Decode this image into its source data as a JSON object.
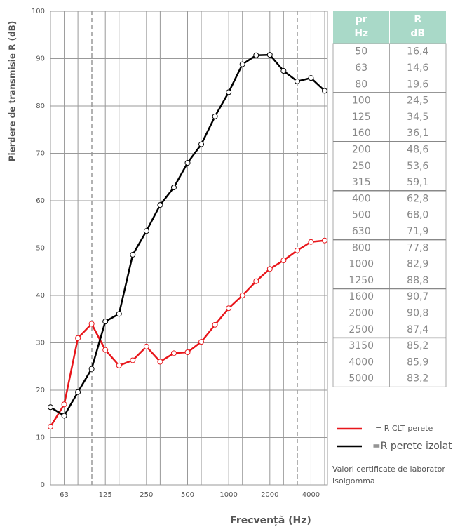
{
  "chart_data": {
    "type": "line",
    "y_label": "Pierdere de transmisie R (dB)",
    "x_label": "Frecvență (Hz)",
    "categories": [
      null,
      "63",
      null,
      null,
      "125",
      null,
      null,
      "250",
      null,
      null,
      "500",
      null,
      null,
      "1000",
      null,
      null,
      "2000",
      null,
      null,
      "4000",
      null
    ],
    "series": [
      {
        "name": "= R CLT perete",
        "color": "#e8161b",
        "values": [
          12.3,
          17,
          31,
          34,
          28.5,
          25.2,
          26.3,
          29.2,
          26,
          27.8,
          28,
          30.2,
          33.8,
          37.3,
          40,
          43,
          45.6,
          47.4,
          49.5,
          51.3,
          51.6
        ]
      },
      {
        "name": "=R perete izolat",
        "color": "#000000",
        "values": [
          16.4,
          14.6,
          19.6,
          24.5,
          34.5,
          36.1,
          48.6,
          53.6,
          59.1,
          62.8,
          68.0,
          71.9,
          77.8,
          82.9,
          88.8,
          90.7,
          90.8,
          87.4,
          85.2,
          85.9,
          83.2
        ]
      }
    ],
    "ylim": [
      0,
      100
    ],
    "yticks": [
      0,
      10,
      20,
      30,
      40,
      50,
      60,
      70,
      80,
      90,
      100
    ],
    "grid": true
  },
  "table": {
    "header": [
      [
        "pr",
        "Hz"
      ],
      [
        "R",
        "dB"
      ]
    ],
    "rows": [
      [
        "50",
        "16,4"
      ],
      [
        "63",
        "14,6"
      ],
      [
        "80",
        "19,6"
      ],
      [
        "100",
        "24,5"
      ],
      [
        "125",
        "34,5"
      ],
      [
        "160",
        "36,1"
      ],
      [
        "200",
        "48,6"
      ],
      [
        "250",
        "53,6"
      ],
      [
        "315",
        "59,1"
      ],
      [
        "400",
        "62,8"
      ],
      [
        "500",
        "68,0"
      ],
      [
        "630",
        "71,9"
      ],
      [
        "800",
        "77,8"
      ],
      [
        "1000",
        "82,9"
      ],
      [
        "1250",
        "88,8"
      ],
      [
        "1600",
        "90,7"
      ],
      [
        "2000",
        "90,8"
      ],
      [
        "2500",
        "87,4"
      ],
      [
        "3150",
        "85,2"
      ],
      [
        "4000",
        "85,9"
      ],
      [
        "5000",
        "83,2"
      ]
    ]
  },
  "note": [
    "Valori certificate de laborator",
    "Isolgomma"
  ]
}
